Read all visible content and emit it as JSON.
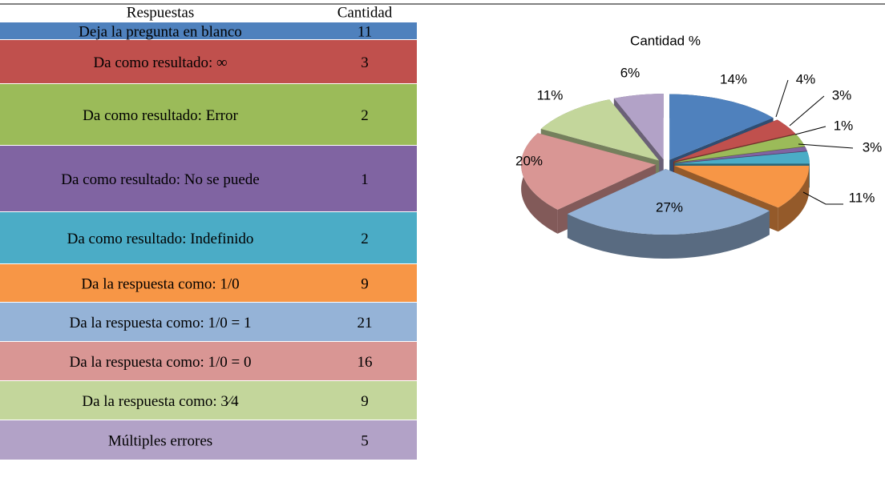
{
  "table": {
    "header": [
      "Respuestas",
      "Cantidad"
    ],
    "rows": [
      [
        "Deja la pregunta en blanco",
        "11"
      ],
      [
        "Da como resultado:  ∞",
        "3"
      ],
      [
        "Da como resultado:  Error",
        "2"
      ],
      [
        "Da como resultado: No se puede",
        "1"
      ],
      [
        "Da como resultado: Indefinido",
        "2"
      ],
      [
        "Da la respuesta como: 1/0",
        "9"
      ],
      [
        "Da la respuesta como: 1/0 = 1",
        "21"
      ],
      [
        "Da la respuesta como: 1/0 = 0",
        "16"
      ],
      [
        "Da la respuesta como: 3⁄4",
        "9"
      ],
      [
        "Múltiples errores",
        "5"
      ]
    ]
  },
  "chart_data": {
    "type": "pie",
    "title": "Cantidad %",
    "values": [
      14,
      4,
      3,
      1,
      3,
      11,
      27,
      20,
      11,
      6
    ],
    "value_labels": [
      "14%",
      "4%",
      "3%",
      "1%",
      "3%",
      "11%",
      "27%",
      "20%",
      "11%",
      "6%"
    ],
    "colors": [
      "#4f81bd",
      "#c0504d",
      "#9bbb59",
      "#8064a2",
      "#4bacc6",
      "#f79646",
      "#95b3d7",
      "#d99694",
      "#c3d69b",
      "#b2a2c7"
    ]
  }
}
